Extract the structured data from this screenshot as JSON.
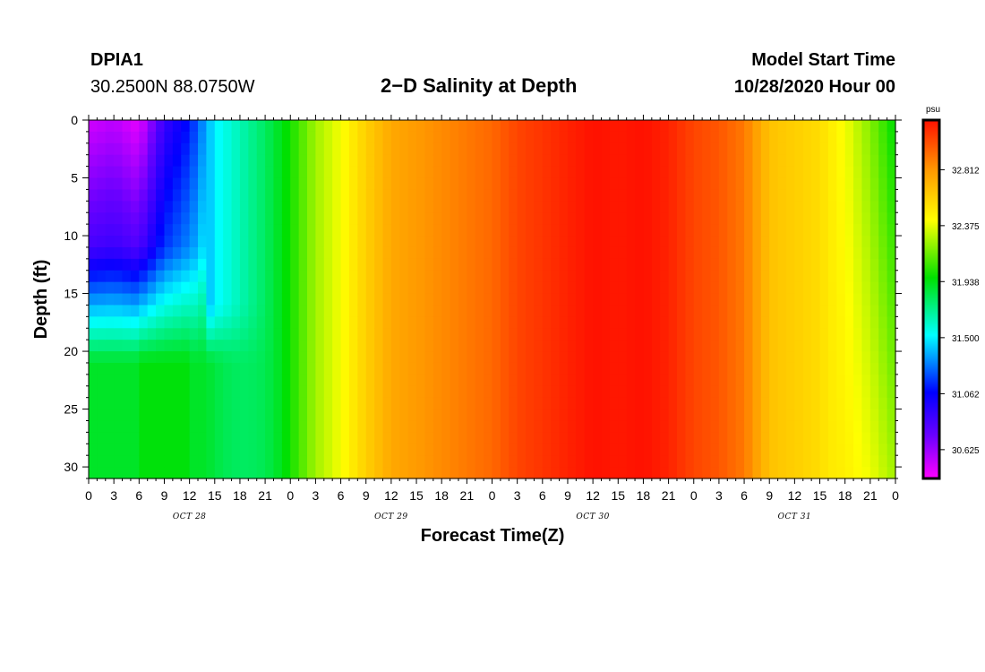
{
  "header": {
    "station": "DPIA1",
    "coords": "30.2500N 88.0750W",
    "title": "2−D Salinity at Depth",
    "model_start_label": "Model Start Time",
    "model_start_value": "10/28/2020 Hour 00"
  },
  "chart_data": {
    "type": "heatmap",
    "title": "2−D Salinity at Depth",
    "xlabel": "Forecast Time(Z)",
    "ylabel": "Depth (ft)",
    "x_tick_labels": [
      "0",
      "3",
      "6",
      "9",
      "12",
      "15",
      "18",
      "21",
      "0",
      "3",
      "6",
      "9",
      "12",
      "15",
      "18",
      "21",
      "0",
      "3",
      "6",
      "9",
      "12",
      "15",
      "18",
      "21",
      "0",
      "3",
      "6",
      "9",
      "12",
      "15",
      "18",
      "21",
      "0"
    ],
    "day_labels": [
      "OCT 28",
      "OCT 29",
      "OCT 30",
      "OCT 31"
    ],
    "y_ticks": [
      0,
      5,
      10,
      15,
      20,
      25,
      30
    ],
    "ylim": [
      0,
      31
    ],
    "xlim_hours": [
      0,
      96
    ],
    "colorbar": {
      "unit": "psu",
      "ticks": [
        "30.625",
        "31.062",
        "31.500",
        "31.938",
        "32.375",
        "32.812"
      ],
      "range": [
        30.4,
        33.2
      ]
    },
    "surface_salinity_by_hour": [
      {
        "hour": 0,
        "psu": 30.5
      },
      {
        "hour": 3,
        "psu": 30.55
      },
      {
        "hour": 6,
        "psu": 30.45
      },
      {
        "hour": 9,
        "psu": 30.9
      },
      {
        "hour": 12,
        "psu": 31.1
      },
      {
        "hour": 15,
        "psu": 31.5
      },
      {
        "hour": 18,
        "psu": 31.65
      },
      {
        "hour": 21,
        "psu": 31.8
      },
      {
        "hour": 24,
        "psu": 32.0
      },
      {
        "hour": 27,
        "psu": 32.25
      },
      {
        "hour": 30,
        "psu": 32.4
      },
      {
        "hour": 33,
        "psu": 32.6
      },
      {
        "hour": 36,
        "psu": 32.75
      },
      {
        "hour": 39,
        "psu": 32.8
      },
      {
        "hour": 42,
        "psu": 32.85
      },
      {
        "hour": 45,
        "psu": 32.9
      },
      {
        "hour": 48,
        "psu": 32.95
      },
      {
        "hour": 51,
        "psu": 33.05
      },
      {
        "hour": 54,
        "psu": 33.1
      },
      {
        "hour": 57,
        "psu": 33.15
      },
      {
        "hour": 60,
        "psu": 33.2
      },
      {
        "hour": 63,
        "psu": 33.18
      },
      {
        "hour": 66,
        "psu": 33.2
      },
      {
        "hour": 69,
        "psu": 33.15
      },
      {
        "hour": 72,
        "psu": 33.05
      },
      {
        "hour": 75,
        "psu": 33.0
      },
      {
        "hour": 78,
        "psu": 32.9
      },
      {
        "hour": 81,
        "psu": 32.65
      },
      {
        "hour": 84,
        "psu": 32.6
      },
      {
        "hour": 87,
        "psu": 32.55
      },
      {
        "hour": 90,
        "psu": 32.4
      },
      {
        "hour": 93,
        "psu": 32.2
      },
      {
        "hour": 96,
        "psu": 31.95
      }
    ]
  }
}
